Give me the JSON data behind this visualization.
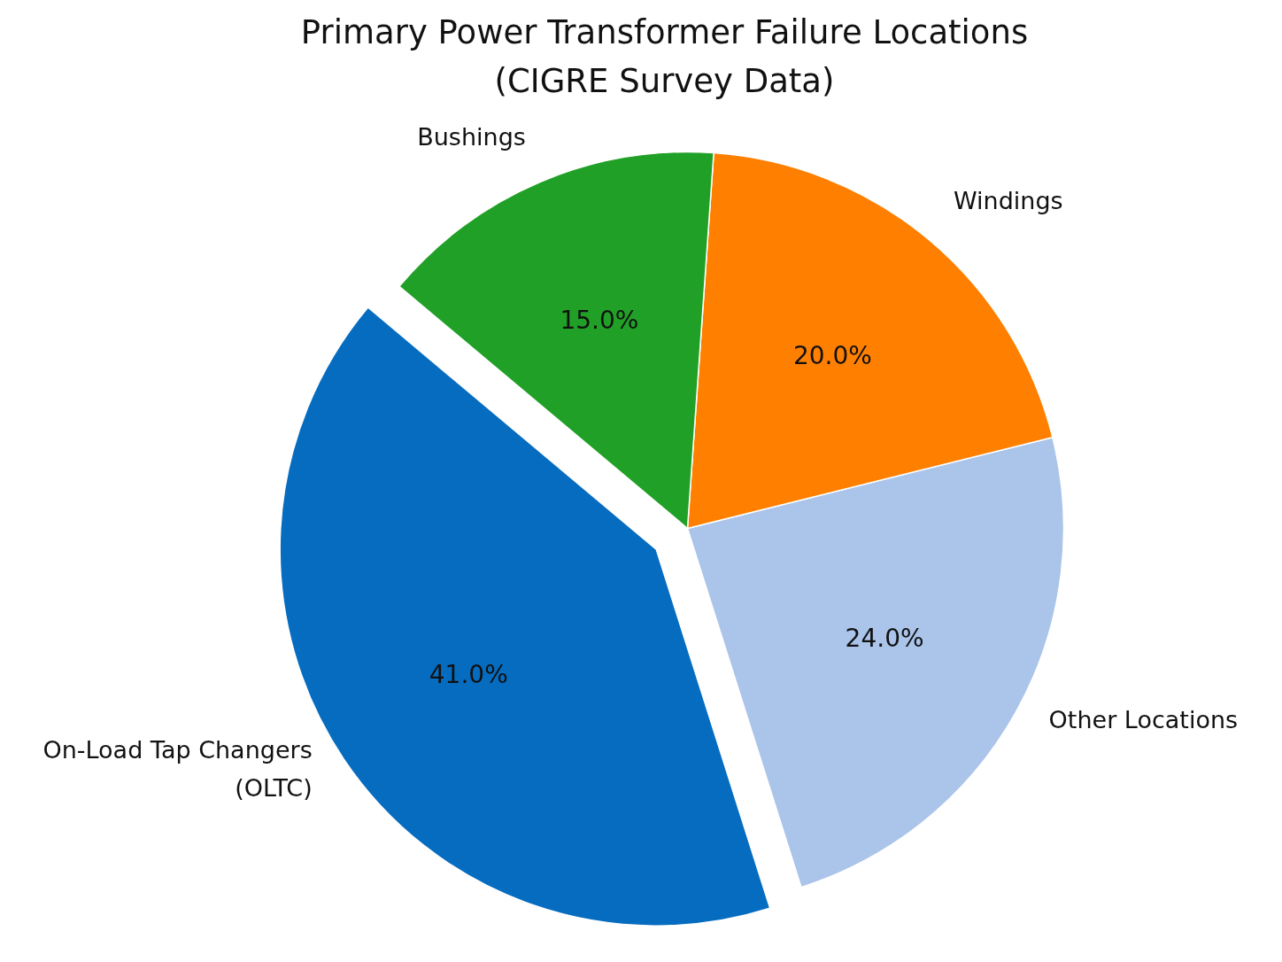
{
  "chart_data": {
    "type": "pie",
    "title": "Primary Power Transformer Failure Locations\n(CIGRE Survey Data)",
    "categories": [
      "On-Load Tap Changers\n(OLTC)",
      "Other Locations",
      "Windings",
      "Bushings"
    ],
    "values": [
      41,
      24,
      20,
      15
    ],
    "colors": [
      "#066cc0",
      "#aac4ea",
      "#ff7f00",
      "#21a027"
    ],
    "value_labels": [
      "41.0%",
      "24.0%",
      "20.0%",
      "15.0%"
    ]
  }
}
